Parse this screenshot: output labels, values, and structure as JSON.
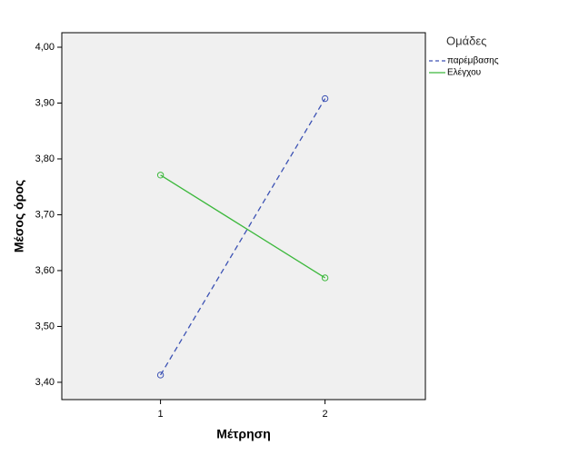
{
  "chart_data": {
    "type": "line",
    "x_label": "Μέτρηση",
    "y_label": "Μέσος όρος",
    "legend_title": "Ομάδες",
    "x": [
      1,
      2
    ],
    "series": [
      {
        "name": "παρέμβασης",
        "color": "#3c52b4",
        "dashed": true,
        "values": [
          3.413,
          3.908
        ]
      },
      {
        "name": "Ελέγχου",
        "color": "#3cb83c",
        "dashed": false,
        "values": [
          3.771,
          3.587
        ]
      }
    ],
    "xlim": [
      0.4,
      2.61
    ],
    "xticks": [
      1,
      2
    ],
    "ylim": [
      3.369,
      4.026
    ],
    "yticks": [
      {
        "value": 3.4,
        "label": "3,40"
      },
      {
        "value": 3.5,
        "label": "3,50"
      },
      {
        "value": 3.6,
        "label": "3,60"
      },
      {
        "value": 3.7,
        "label": "3,70"
      },
      {
        "value": 3.8,
        "label": "3,80"
      },
      {
        "value": 3.9,
        "label": "3,90"
      },
      {
        "value": 4.0,
        "label": "4,00"
      }
    ],
    "legend_position": "right"
  }
}
